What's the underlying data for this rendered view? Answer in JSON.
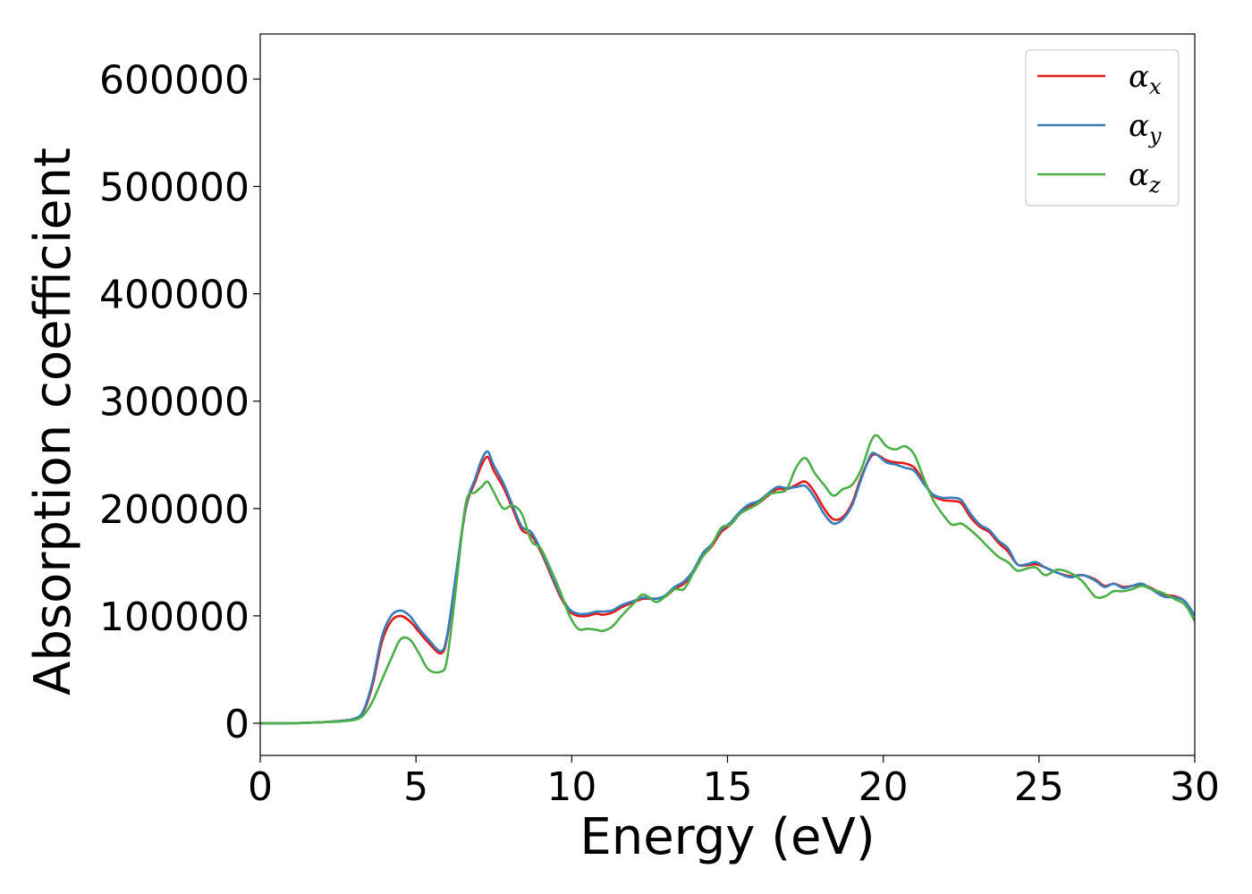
{
  "chart_data": {
    "type": "line",
    "title": "",
    "xlabel": "Energy (eV)",
    "ylabel": "Absorption coefficient",
    "xlim": [
      0,
      30
    ],
    "ylim": [
      -30000,
      642000
    ],
    "x_ticks": [
      0,
      5,
      10,
      15,
      20,
      25,
      30
    ],
    "y_ticks": [
      0,
      100000,
      200000,
      300000,
      400000,
      500000,
      600000
    ],
    "grid": false,
    "legend_position": "top-right",
    "series": [
      {
        "name": "α_x",
        "label_main": "α",
        "label_sub": "x",
        "color": "#e41a1c",
        "x": [
          0,
          1,
          2,
          2.5,
          3,
          3.3,
          3.6,
          3.9,
          4.2,
          4.5,
          4.8,
          5.1,
          5.4,
          5.8,
          6.0,
          6.3,
          6.6,
          6.9,
          7.1,
          7.3,
          7.5,
          7.8,
          8.1,
          8.4,
          8.7,
          9.0,
          9.3,
          9.6,
          9.9,
          10.2,
          10.5,
          10.8,
          11.0,
          11.3,
          11.6,
          12.0,
          12.3,
          12.7,
          13.0,
          13.3,
          13.6,
          13.9,
          14.2,
          14.5,
          14.8,
          15.1,
          15.4,
          15.7,
          16.0,
          16.3,
          16.6,
          16.9,
          17.2,
          17.5,
          17.8,
          18.1,
          18.4,
          18.7,
          19.0,
          19.3,
          19.6,
          19.8,
          20.1,
          20.4,
          20.7,
          21.0,
          21.3,
          21.6,
          21.9,
          22.2,
          22.5,
          22.8,
          23.1,
          23.4,
          23.7,
          24.0,
          24.3,
          24.6,
          24.9,
          25.2,
          25.6,
          26.0,
          26.4,
          26.8,
          27.1,
          27.4,
          27.7,
          28.0,
          28.3,
          28.6,
          29.0,
          29.4,
          29.7,
          30.0
        ],
        "y": [
          0,
          0,
          1000,
          2000,
          4000,
          10000,
          35000,
          75000,
          95000,
          100000,
          95000,
          85000,
          75000,
          65000,
          80000,
          140000,
          200000,
          225000,
          240000,
          248000,
          235000,
          220000,
          200000,
          180000,
          175000,
          160000,
          140000,
          120000,
          105000,
          100000,
          100000,
          102000,
          101000,
          103000,
          108000,
          113000,
          116000,
          116000,
          118000,
          125000,
          130000,
          140000,
          155000,
          165000,
          178000,
          185000,
          195000,
          202000,
          205000,
          212000,
          218000,
          218000,
          222000,
          225000,
          215000,
          200000,
          190000,
          192000,
          205000,
          230000,
          248000,
          250000,
          245000,
          243000,
          242000,
          238000,
          225000,
          212000,
          208000,
          207000,
          205000,
          192000,
          183000,
          178000,
          168000,
          160000,
          148000,
          147000,
          148000,
          145000,
          140000,
          137000,
          138000,
          134000,
          128000,
          130000,
          127000,
          128000,
          129000,
          126000,
          120000,
          118000,
          113000,
          100000
        ]
      },
      {
        "name": "α_y",
        "label_main": "α",
        "label_sub": "y",
        "color": "#377eb8",
        "x": [
          0,
          1,
          2,
          2.5,
          3,
          3.3,
          3.6,
          3.9,
          4.2,
          4.5,
          4.8,
          5.1,
          5.4,
          5.8,
          6.0,
          6.3,
          6.6,
          6.9,
          7.1,
          7.3,
          7.5,
          7.8,
          8.1,
          8.4,
          8.7,
          9.0,
          9.3,
          9.6,
          9.9,
          10.2,
          10.5,
          10.8,
          11.0,
          11.3,
          11.6,
          12.0,
          12.3,
          12.7,
          13.0,
          13.3,
          13.6,
          13.9,
          14.2,
          14.5,
          14.8,
          15.1,
          15.4,
          15.7,
          16.0,
          16.3,
          16.6,
          16.9,
          17.2,
          17.5,
          17.8,
          18.1,
          18.4,
          18.7,
          19.0,
          19.3,
          19.6,
          19.8,
          20.1,
          20.4,
          20.7,
          21.0,
          21.3,
          21.6,
          21.9,
          22.2,
          22.5,
          22.8,
          23.1,
          23.4,
          23.7,
          24.0,
          24.3,
          24.6,
          24.9,
          25.2,
          25.6,
          26.0,
          26.4,
          26.8,
          27.1,
          27.4,
          27.7,
          28.0,
          28.3,
          28.6,
          29.0,
          29.4,
          29.7,
          30.0
        ],
        "y": [
          0,
          0,
          1000,
          2000,
          4000,
          11000,
          38000,
          80000,
          100000,
          105000,
          100000,
          88000,
          78000,
          67000,
          82000,
          142000,
          202000,
          228000,
          245000,
          253000,
          240000,
          224000,
          203000,
          183000,
          178000,
          162000,
          142000,
          122000,
          107000,
          102000,
          102000,
          104000,
          104000,
          105000,
          110000,
          114000,
          117000,
          116000,
          119000,
          127000,
          132000,
          142000,
          158000,
          167000,
          180000,
          187000,
          197000,
          204000,
          207000,
          214000,
          220000,
          219000,
          220000,
          221000,
          210000,
          195000,
          186000,
          190000,
          203000,
          228000,
          250000,
          250000,
          243000,
          241000,
          238000,
          235000,
          223000,
          213000,
          210000,
          210000,
          208000,
          195000,
          185000,
          180000,
          170000,
          163000,
          148000,
          148000,
          150000,
          145000,
          140000,
          136000,
          138000,
          133000,
          127000,
          130000,
          126000,
          128000,
          130000,
          125000,
          118000,
          117000,
          113000,
          100000
        ]
      },
      {
        "name": "α_z",
        "label_main": "α",
        "label_sub": "z",
        "color": "#4daf4a",
        "x": [
          0,
          1,
          2,
          2.5,
          3,
          3.3,
          3.6,
          3.9,
          4.2,
          4.5,
          4.8,
          5.1,
          5.4,
          5.8,
          6.0,
          6.3,
          6.6,
          6.9,
          7.1,
          7.3,
          7.5,
          7.8,
          8.1,
          8.4,
          8.7,
          9.0,
          9.3,
          9.6,
          9.9,
          10.2,
          10.5,
          10.8,
          11.0,
          11.3,
          11.6,
          12.0,
          12.3,
          12.7,
          13.0,
          13.3,
          13.6,
          13.9,
          14.2,
          14.5,
          14.8,
          15.1,
          15.4,
          15.7,
          16.0,
          16.3,
          16.6,
          16.9,
          17.2,
          17.5,
          17.8,
          18.1,
          18.4,
          18.7,
          19.0,
          19.3,
          19.6,
          19.8,
          20.1,
          20.4,
          20.7,
          21.0,
          21.3,
          21.6,
          21.9,
          22.2,
          22.5,
          22.8,
          23.1,
          23.4,
          23.7,
          24.0,
          24.3,
          24.6,
          24.9,
          25.2,
          25.6,
          26.0,
          26.4,
          26.8,
          27.1,
          27.4,
          27.7,
          28.0,
          28.3,
          28.6,
          29.0,
          29.4,
          29.7,
          30.0
        ],
        "y": [
          0,
          0,
          1000,
          1500,
          3000,
          7000,
          20000,
          40000,
          60000,
          78000,
          78000,
          65000,
          50000,
          48000,
          60000,
          130000,
          205000,
          215000,
          220000,
          225000,
          215000,
          200000,
          203000,
          195000,
          170000,
          163000,
          145000,
          125000,
          102000,
          88000,
          88000,
          87000,
          86000,
          90000,
          100000,
          112000,
          120000,
          113000,
          118000,
          125000,
          125000,
          140000,
          155000,
          166000,
          182000,
          185000,
          195000,
          200000,
          205000,
          213000,
          215000,
          218000,
          238000,
          247000,
          233000,
          222000,
          212000,
          218000,
          222000,
          237000,
          262000,
          268000,
          258000,
          255000,
          258000,
          250000,
          228000,
          208000,
          195000,
          185000,
          186000,
          180000,
          172000,
          163000,
          155000,
          150000,
          142000,
          144000,
          145000,
          138000,
          143000,
          140000,
          132000,
          118000,
          118000,
          123000,
          123000,
          125000,
          128000,
          125000,
          121000,
          115000,
          110000,
          95000
        ]
      }
    ]
  }
}
